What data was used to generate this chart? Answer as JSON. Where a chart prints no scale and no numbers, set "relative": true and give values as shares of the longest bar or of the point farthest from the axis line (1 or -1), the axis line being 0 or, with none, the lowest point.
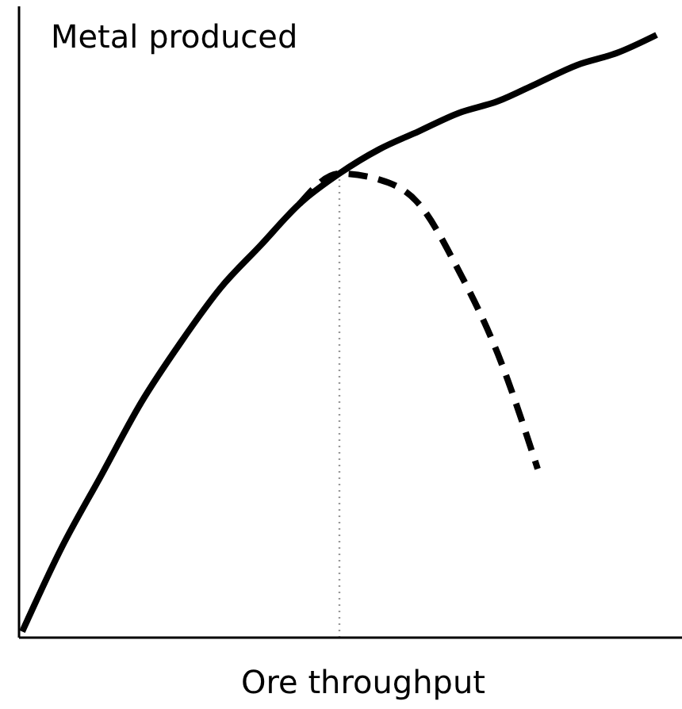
{
  "chart_data": {
    "type": "line",
    "relative": true,
    "ylabel": "Metal produced",
    "xlabel": "Ore throughput",
    "categories": [
      null,
      null,
      null,
      null,
      null,
      null,
      null,
      null,
      null,
      null,
      null,
      null,
      null,
      null,
      null,
      null,
      null
    ],
    "series": [
      {
        "color": "#000000",
        "line_style": "solid",
        "values": [
          0.01,
          0.15,
          0.27,
          0.39,
          0.49,
          0.58,
          0.65,
          0.72,
          0.77,
          0.81,
          0.84,
          0.87,
          0.89,
          0.92,
          0.95,
          0.97,
          1
        ]
      },
      {
        "color": "#000000",
        "line_style": "dashed",
        "values": [
          null,
          null,
          null,
          null,
          null,
          null,
          null,
          0.72,
          0.77,
          0.76,
          0.72,
          0.61,
          0.47,
          0.28,
          null,
          null,
          null
        ]
      }
    ],
    "marker": "none"
  }
}
